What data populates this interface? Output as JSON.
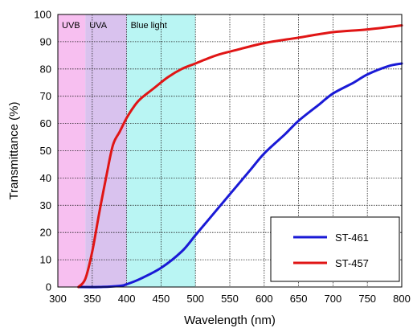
{
  "chart_data": {
    "type": "line",
    "xlabel": "Wavelength (nm)",
    "ylabel": "Transmittance (%)",
    "xlim": [
      300,
      800
    ],
    "ylim": [
      0,
      100
    ],
    "x_ticks": [
      300,
      350,
      400,
      450,
      500,
      550,
      600,
      650,
      700,
      750,
      800
    ],
    "y_ticks": [
      0,
      10,
      20,
      30,
      40,
      50,
      60,
      70,
      80,
      90,
      100
    ],
    "grid": true,
    "legend_position": "bottom-right",
    "bands": [
      {
        "label": "UVB",
        "from": 300,
        "to": 340,
        "color": "#f7bff0"
      },
      {
        "label": "UVA",
        "from": 340,
        "to": 400,
        "color": "#d9c2ee"
      },
      {
        "label": "Blue light",
        "from": 400,
        "to": 500,
        "color": "#b9f5f3"
      }
    ],
    "series": [
      {
        "name": "ST-461",
        "color": "#1a1ad6",
        "x": [
          330,
          360,
          390,
          400,
          420,
          450,
          480,
          500,
          520,
          550,
          580,
          600,
          630,
          650,
          680,
          700,
          730,
          750,
          780,
          800
        ],
        "y": [
          0,
          0,
          0.4,
          1,
          3,
          7,
          13,
          19,
          25,
          34,
          43,
          49,
          56,
          61,
          67,
          71,
          75,
          78,
          81,
          82
        ]
      },
      {
        "name": "ST-457",
        "color": "#e01515",
        "x": [
          330,
          340,
          350,
          360,
          370,
          380,
          390,
          400,
          410,
          420,
          440,
          460,
          480,
          500,
          530,
          560,
          600,
          650,
          700,
          750,
          800
        ],
        "y": [
          0,
          3,
          13,
          27,
          40,
          52,
          57,
          62,
          66,
          69,
          73,
          77,
          80,
          82,
          85,
          87,
          89.5,
          91.5,
          93.5,
          94.5,
          96
        ]
      }
    ]
  }
}
